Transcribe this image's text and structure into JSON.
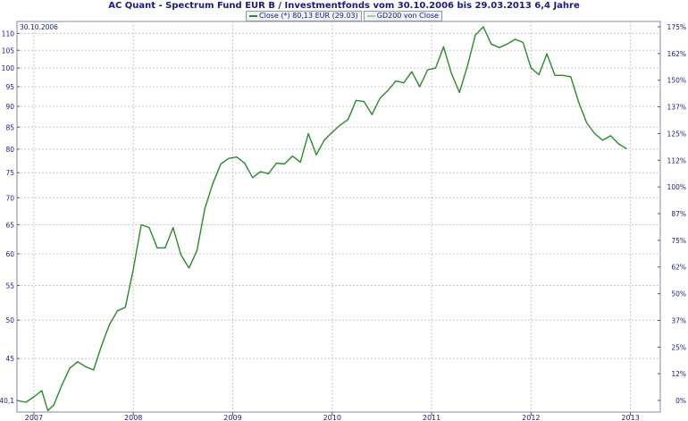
{
  "title": "AC Quant - Spectrum Fund EUR B / Investmentfonds vom 30.10.2006 bis 29.03.2013 6,4 Jahre",
  "start_label": "30.10.2006",
  "legend": [
    {
      "label": "Close (*) 80,13 EUR (29.03)",
      "color": "#2a8a2a"
    },
    {
      "label": "GD200 von Close",
      "color": "#9ccc9c"
    }
  ],
  "chart_data": {
    "type": "line",
    "title": "AC Quant - Spectrum Fund EUR B / Investmentfonds vom 30.10.2006 bis 29.03.2013 6,4 Jahre",
    "y_scale": "log",
    "ylim": [
      40.1,
      112
    ],
    "xlim": [
      2006.83,
      2013.3
    ],
    "y_ticks": [
      45,
      50,
      55,
      60,
      65,
      70,
      75,
      80,
      85,
      90,
      95,
      100,
      105,
      110
    ],
    "y_min_label": "40,1",
    "y2_ticks": [
      "0%",
      "12%",
      "25%",
      "37%",
      "50%",
      "62%",
      "75%",
      "87%",
      "100%",
      "112%",
      "125%",
      "137%",
      "150%",
      "162%",
      "175%"
    ],
    "x_ticks": [
      "2007",
      "2008",
      "2009",
      "2010",
      "2011",
      "2012",
      "2013"
    ],
    "series": [
      {
        "name": "Close (*) 80,13 EUR (29.03)",
        "color": "#2a8a2a",
        "points": [
          [
            2006.83,
            40.1
          ],
          [
            2006.92,
            39.9
          ],
          [
            2007.0,
            40.5
          ],
          [
            2007.08,
            41.2
          ],
          [
            2007.14,
            39.0
          ],
          [
            2007.2,
            39.6
          ],
          [
            2007.28,
            41.8
          ],
          [
            2007.36,
            43.8
          ],
          [
            2007.44,
            44.6
          ],
          [
            2007.52,
            44.0
          ],
          [
            2007.6,
            43.6
          ],
          [
            2007.68,
            46.6
          ],
          [
            2007.76,
            49.4
          ],
          [
            2007.84,
            51.3
          ],
          [
            2007.92,
            51.8
          ],
          [
            2008.0,
            57.5
          ],
          [
            2008.08,
            65.0
          ],
          [
            2008.16,
            64.5
          ],
          [
            2008.24,
            61.0
          ],
          [
            2008.32,
            61.0
          ],
          [
            2008.4,
            64.5
          ],
          [
            2008.48,
            59.8
          ],
          [
            2008.56,
            57.7
          ],
          [
            2008.64,
            60.5
          ],
          [
            2008.72,
            68.0
          ],
          [
            2008.8,
            72.8
          ],
          [
            2008.88,
            76.8
          ],
          [
            2008.96,
            78.0
          ],
          [
            2009.04,
            78.3
          ],
          [
            2009.12,
            77.0
          ],
          [
            2009.2,
            74.0
          ],
          [
            2009.28,
            75.2
          ],
          [
            2009.36,
            74.8
          ],
          [
            2009.44,
            77.0
          ],
          [
            2009.52,
            76.8
          ],
          [
            2009.6,
            78.5
          ],
          [
            2009.68,
            77.2
          ],
          [
            2009.76,
            83.5
          ],
          [
            2009.84,
            78.8
          ],
          [
            2009.92,
            82.0
          ],
          [
            2010.0,
            83.8
          ],
          [
            2010.08,
            85.5
          ],
          [
            2010.16,
            86.8
          ],
          [
            2010.24,
            91.5
          ],
          [
            2010.32,
            91.2
          ],
          [
            2010.4,
            88.0
          ],
          [
            2010.48,
            92.0
          ],
          [
            2010.56,
            94.0
          ],
          [
            2010.64,
            96.5
          ],
          [
            2010.72,
            96.0
          ],
          [
            2010.8,
            99.0
          ],
          [
            2010.88,
            95.0
          ],
          [
            2010.96,
            99.5
          ],
          [
            2011.04,
            100.0
          ],
          [
            2011.12,
            106.0
          ],
          [
            2011.2,
            98.5
          ],
          [
            2011.28,
            93.5
          ],
          [
            2011.36,
            100.5
          ],
          [
            2011.44,
            109.5
          ],
          [
            2011.52,
            112.0
          ],
          [
            2011.6,
            106.8
          ],
          [
            2011.68,
            105.8
          ],
          [
            2011.76,
            106.8
          ],
          [
            2011.84,
            108.2
          ],
          [
            2011.92,
            107.3
          ],
          [
            2012.0,
            100.0
          ],
          [
            2012.08,
            98.2
          ],
          [
            2012.16,
            104.0
          ],
          [
            2012.24,
            98.0
          ],
          [
            2012.32,
            98.0
          ],
          [
            2012.4,
            97.6
          ],
          [
            2012.48,
            91.0
          ],
          [
            2012.56,
            86.0
          ],
          [
            2012.64,
            83.5
          ],
          [
            2012.72,
            82.0
          ],
          [
            2012.8,
            83.0
          ],
          [
            2012.88,
            81.2
          ],
          [
            2012.96,
            80.13
          ]
        ]
      }
    ]
  }
}
